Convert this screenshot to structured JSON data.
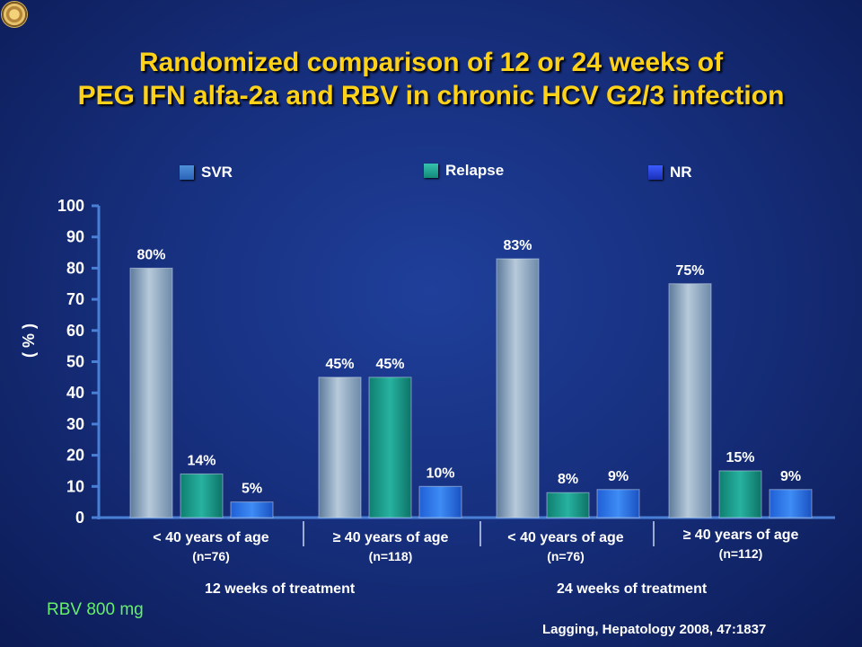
{
  "header": {
    "title_line1": "Randomized comparison of 12 or 24 weeks of",
    "title_line2": "PEG IFN alfa-2a and RBV in chronic HCV G2/3 infection"
  },
  "legend": {
    "items": [
      {
        "label": "SVR",
        "color": "#8fb0c8"
      },
      {
        "label": "Relapse",
        "color": "#1aa595"
      },
      {
        "label": "NR",
        "color": "#2b6fe0"
      }
    ]
  },
  "groups": [
    {
      "label": "< 40 years of age",
      "sub": "(n=76)"
    },
    {
      "label": "≥ 40 years of age",
      "sub": "(n=118)"
    },
    {
      "label": "< 40 years of age",
      "sub": "(n=76)"
    },
    {
      "label": "≥ 40 years of age",
      "sub": "(n=112)"
    }
  ],
  "periods": {
    "left": "12 weeks of treatment",
    "right": "24 weeks of treatment"
  },
  "footer": {
    "rbv_note": "RBV 800 mg",
    "citation": "Lagging, Hepatology 2008, 47:1837"
  },
  "chart_data": {
    "type": "bar",
    "ylabel": "( % )",
    "ylim": [
      0,
      100
    ],
    "yticks": [
      0,
      10,
      20,
      30,
      40,
      50,
      60,
      70,
      80,
      90,
      100
    ],
    "categories": [
      "< 40 years of age (n=76)",
      "≥ 40 years of age (n=118)",
      "< 40 years of age (n=76)",
      "≥ 40 years of age (n=112)"
    ],
    "series": [
      {
        "name": "SVR",
        "values": [
          80,
          45,
          83,
          75
        ],
        "labels": [
          "80%",
          "45%",
          "83%",
          "75%"
        ]
      },
      {
        "name": "Relapse",
        "values": [
          14,
          45,
          8,
          15
        ],
        "labels": [
          "14%",
          "45%",
          "8%",
          "15%"
        ]
      },
      {
        "name": "NR",
        "values": [
          5,
          10,
          9,
          9
        ],
        "labels": [
          "5%",
          "10%",
          "9%",
          "9%"
        ]
      }
    ],
    "legend_position": "top"
  }
}
